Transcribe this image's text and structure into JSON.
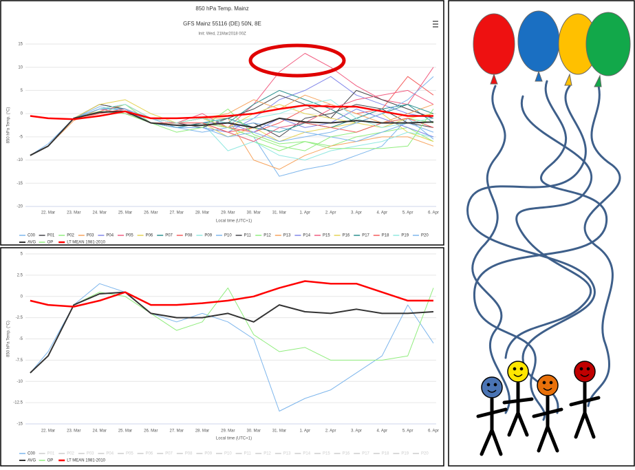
{
  "chart_data": [
    {
      "type": "line",
      "title": "850 hPa Temp. Mainz",
      "subtitle": "GFS Mainz 55116 (DE) 50N, 8E",
      "caption": "Init: Wed, 21Mar2018 00Z",
      "y_label": "850 hPa Temp. (°C)",
      "x_label": "Local time (UTC+1)",
      "grid": true,
      "ylim": [
        -20,
        15
      ],
      "yticks": [
        -20,
        -15,
        -10,
        -5,
        0,
        5,
        10,
        15
      ],
      "categories": [
        null,
        "22. Mar",
        "23. Mar",
        "24. Mar",
        "25. Mar",
        "26. Mar",
        "27. Mar",
        "28. Mar",
        "29. Mar",
        "30. Mar",
        "31. Mar",
        "1. Apr",
        "2. Apr",
        "3. Apr",
        "4. Apr",
        "5. Apr",
        "6. Apr"
      ],
      "series": [
        {
          "name": "C00",
          "color": "#7cb5ec",
          "width": 1,
          "values": [
            -9,
            -6.5,
            -1,
            1.5,
            0.5,
            -2,
            -3,
            -2,
            -3,
            -5,
            -13.5,
            -12,
            -11,
            -9,
            -7,
            -1,
            -5.5
          ]
        },
        {
          "name": "P01",
          "color": "#434348",
          "width": 1,
          "values": [
            -9,
            -7,
            -1,
            1,
            1,
            -2,
            -2,
            -1,
            -3,
            -2,
            -5,
            -1,
            0,
            2,
            1,
            -2,
            -3
          ]
        },
        {
          "name": "P02",
          "color": "#90ed7d",
          "width": 1,
          "values": [
            -9,
            -7,
            -1,
            0,
            2,
            -1,
            -3,
            -2,
            -4,
            -6,
            -8,
            -6,
            -7,
            -5,
            -4,
            -3,
            -6
          ]
        },
        {
          "name": "P03",
          "color": "#f7a35c",
          "width": 1,
          "values": [
            -9,
            -7,
            -1.5,
            1,
            2,
            -1,
            -2,
            -1,
            -1,
            -10,
            -12,
            -9,
            -7,
            -6,
            -5,
            -5,
            -7
          ]
        },
        {
          "name": "P04",
          "color": "#8085e9",
          "width": 1,
          "values": [
            -9,
            -7,
            -1,
            2,
            1,
            -2,
            -3,
            -3,
            -4,
            -1,
            3,
            5,
            8,
            4,
            2,
            0,
            -1
          ]
        },
        {
          "name": "P05",
          "color": "#f15c80",
          "width": 1,
          "values": [
            -9,
            -7,
            -1,
            0,
            1,
            -1,
            -2,
            0,
            -3,
            2,
            9,
            13,
            10,
            6,
            3,
            2,
            10
          ]
        },
        {
          "name": "P06",
          "color": "#e4d354",
          "width": 1,
          "values": [
            -9,
            -7,
            -1,
            1,
            0,
            -2,
            -3,
            -2,
            -5,
            -3,
            -6,
            -4,
            -3,
            -2,
            0,
            -4,
            -6
          ]
        },
        {
          "name": "P07",
          "color": "#2b908f",
          "width": 1,
          "values": [
            -9,
            -7,
            -1,
            1,
            1,
            -2,
            -2,
            -1,
            -2,
            2,
            5,
            3,
            1,
            -2,
            0,
            2,
            -2
          ]
        },
        {
          "name": "P08",
          "color": "#f45b5b",
          "width": 1,
          "values": [
            -9,
            -7,
            -1,
            0.5,
            2,
            -1,
            -2,
            -2,
            -3,
            -4,
            -2,
            1,
            2,
            0,
            1,
            8,
            4
          ]
        },
        {
          "name": "P09",
          "color": "#91e8e1",
          "width": 1,
          "values": [
            -9,
            -7,
            -1,
            1,
            0,
            -2,
            -3,
            -2,
            -8,
            -6,
            -9,
            -10,
            -8,
            -7,
            -6,
            -4,
            -5
          ]
        },
        {
          "name": "P10",
          "color": "#7cb5ec",
          "width": 1,
          "values": [
            -9,
            -7,
            -1,
            1,
            1,
            -1,
            -3,
            -4,
            -3,
            -2,
            -3,
            -4,
            -5,
            -6,
            -4,
            -2,
            -4
          ]
        },
        {
          "name": "P11",
          "color": "#434348",
          "width": 1,
          "values": [
            -9,
            -7,
            -1,
            2,
            1,
            -2,
            -2,
            -3,
            -1,
            1,
            4,
            2,
            -1,
            5,
            3,
            1,
            -1
          ]
        },
        {
          "name": "P12",
          "color": "#90ed7d",
          "width": 1,
          "values": [
            -9,
            -7,
            -1,
            1,
            2,
            -2,
            -3,
            -2,
            -3,
            -5,
            -7,
            -8,
            -5,
            -4,
            -2,
            -1,
            -2
          ]
        },
        {
          "name": "P13",
          "color": "#f7a35c",
          "width": 1,
          "values": [
            -9,
            -7,
            -1,
            0,
            1,
            -2,
            -2,
            -1,
            0,
            3,
            1,
            4,
            2,
            0,
            -2,
            0,
            2
          ]
        },
        {
          "name": "P14",
          "color": "#8085e9",
          "width": 1,
          "values": [
            -9,
            -7,
            -1,
            1,
            1,
            -2,
            -3,
            -2,
            -2,
            -4,
            -1,
            -3,
            -2,
            1,
            -1,
            -3,
            -5
          ]
        },
        {
          "name": "P15",
          "color": "#f15c80",
          "width": 1,
          "values": [
            -9,
            -7,
            -1,
            1,
            0,
            -1,
            -2,
            -2,
            -4,
            -6,
            -3,
            -2,
            1,
            3,
            4,
            5,
            2
          ]
        },
        {
          "name": "P16",
          "color": "#e4d354",
          "width": 1,
          "values": [
            -9,
            -7,
            -1,
            2,
            3,
            0,
            -2,
            -1,
            -3,
            0,
            2,
            0,
            -1,
            -2,
            -3,
            -1,
            0
          ]
        },
        {
          "name": "P17",
          "color": "#2b908f",
          "width": 1,
          "values": [
            -9,
            -7,
            -1,
            1,
            1,
            -2,
            -3,
            -2,
            -1,
            -3,
            -4,
            -2,
            -3,
            -1,
            1,
            2,
            0
          ]
        },
        {
          "name": "P18",
          "color": "#f45b5b",
          "width": 1,
          "values": [
            -9,
            -7,
            -1,
            0,
            1,
            -2,
            -2,
            -2,
            -4,
            -3,
            -1,
            -2,
            -3,
            -4,
            -2,
            -1,
            -3
          ]
        },
        {
          "name": "P19",
          "color": "#91e8e1",
          "width": 1,
          "values": [
            -9,
            -7,
            -1,
            1,
            2,
            -1,
            -2,
            -1,
            -2,
            -1,
            0,
            2,
            3,
            -1,
            -3,
            -2,
            -1
          ]
        },
        {
          "name": "P20",
          "color": "#7cb5ec",
          "width": 1,
          "values": [
            -9,
            -7,
            -1,
            1,
            1,
            -2,
            -3,
            -3,
            -5,
            -4,
            -6,
            -5,
            -4,
            -2,
            0,
            3,
            8
          ]
        },
        {
          "name": "AVG",
          "color": "#333333",
          "width": 2,
          "values": [
            -9,
            -7,
            -1,
            0.3,
            0.5,
            -2,
            -2.5,
            -2.5,
            -2,
            -3,
            -1,
            -1.8,
            -2,
            -1.5,
            -2,
            -2,
            -1.8
          ]
        },
        {
          "name": "OP",
          "color": "#90ed7d",
          "width": 1,
          "values": [
            -9,
            -7,
            -1,
            0.5,
            0,
            -2,
            -4,
            -3,
            1,
            -4.5,
            -6.5,
            -6,
            -7.5,
            -7.5,
            -7.5,
            -7,
            1
          ]
        },
        {
          "name": "LT MEAN 1981-2010",
          "color": "#ff0000",
          "width": 2.5,
          "values": [
            -0.5,
            -1,
            -1.2,
            -0.5,
            0.5,
            -1,
            -1,
            -0.8,
            -0.5,
            0,
            1,
            1.8,
            1.5,
            1.5,
            0.5,
            -0.5,
            -0.5
          ]
        }
      ]
    },
    {
      "type": "line",
      "y_label": "850 hPa Temp. (°C)",
      "x_label": "Local time (UTC+1)",
      "grid": true,
      "ylim": [
        -15,
        5
      ],
      "yticks": [
        -15,
        -12.5,
        -10,
        -7.5,
        -5,
        -2.5,
        0,
        2.5,
        5
      ],
      "categories": [
        null,
        "22. Mar",
        "23. Mar",
        "24. Mar",
        "25. Mar",
        "26. Mar",
        "27. Mar",
        "28. Mar",
        "29. Mar",
        "30. Mar",
        "31. Mar",
        "1. Apr",
        "2. Apr",
        "3. Apr",
        "4. Apr",
        "5. Apr",
        "6. Apr"
      ],
      "series": [
        {
          "name": "C00",
          "color": "#7cb5ec",
          "width": 1,
          "values": [
            -9,
            -6.5,
            -1,
            1.5,
            0.5,
            -2,
            -3,
            -2,
            -3,
            -5,
            -13.5,
            -12,
            -11,
            -9,
            -7,
            -1,
            -5.5
          ]
        },
        {
          "name": "P01",
          "visible": false
        },
        {
          "name": "P02",
          "visible": false
        },
        {
          "name": "P03",
          "visible": false
        },
        {
          "name": "P04",
          "visible": false
        },
        {
          "name": "P05",
          "visible": false
        },
        {
          "name": "P06",
          "visible": false
        },
        {
          "name": "P07",
          "visible": false
        },
        {
          "name": "P08",
          "visible": false
        },
        {
          "name": "P09",
          "visible": false
        },
        {
          "name": "P10",
          "visible": false
        },
        {
          "name": "P11",
          "visible": false
        },
        {
          "name": "P12",
          "visible": false
        },
        {
          "name": "P13",
          "visible": false
        },
        {
          "name": "P14",
          "visible": false
        },
        {
          "name": "P15",
          "visible": false
        },
        {
          "name": "P16",
          "visible": false
        },
        {
          "name": "P17",
          "visible": false
        },
        {
          "name": "P18",
          "visible": false
        },
        {
          "name": "P19",
          "visible": false
        },
        {
          "name": "P20",
          "visible": false
        },
        {
          "name": "AVG",
          "color": "#333333",
          "width": 2,
          "values": [
            -9,
            -7,
            -1,
            0.3,
            0.5,
            -2,
            -2.5,
            -2.5,
            -2,
            -3,
            -1,
            -1.8,
            -2,
            -1.5,
            -2,
            -2,
            -1.8
          ]
        },
        {
          "name": "OP",
          "color": "#90ed7d",
          "width": 1,
          "values": [
            -9,
            -7,
            -1,
            0.5,
            0,
            -2,
            -4,
            -3,
            1,
            -4.5,
            -6.5,
            -6,
            -7.5,
            -7.5,
            -7.5,
            -7,
            1
          ]
        },
        {
          "name": "LT MEAN 1981-2010",
          "color": "#ff0000",
          "width": 2.5,
          "values": [
            -0.5,
            -1,
            -1.2,
            -0.5,
            0.5,
            -1,
            -1,
            -0.8,
            -0.5,
            0,
            1,
            1.8,
            1.5,
            1.5,
            0.5,
            -0.5,
            -0.5
          ]
        }
      ]
    }
  ]
}
